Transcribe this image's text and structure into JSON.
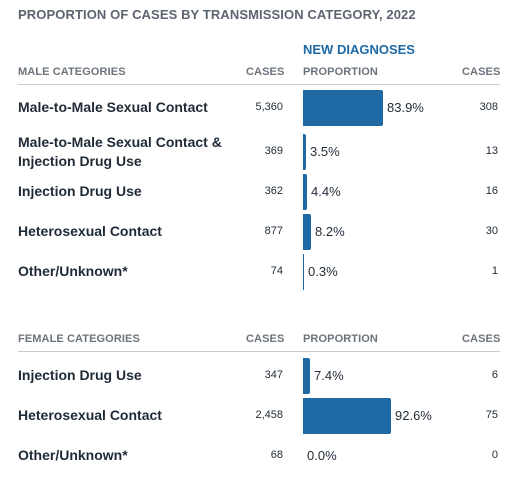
{
  "title": "PROPORTION OF CASES BY TRANSMISSION CATEGORY, 2022",
  "new_diagnoses_label": "NEW DIAGNOSES",
  "male": {
    "header": {
      "category": "MALE CATEGORIES",
      "cases": "CASES",
      "proportion": "PROPORTION",
      "cases2": "CASES"
    },
    "rows": [
      {
        "label": "Male-to-Male Sexual Contact",
        "cases": "5,360",
        "proportion": "83.9%",
        "new_cases": "308"
      },
      {
        "label": "Male-to-Male Sexual Contact & Injection Drug Use",
        "cases": "369",
        "proportion": "3.5%",
        "new_cases": "13"
      },
      {
        "label": "Injection Drug Use",
        "cases": "362",
        "proportion": "4.4%",
        "new_cases": "16"
      },
      {
        "label": "Heterosexual Contact",
        "cases": "877",
        "proportion": "8.2%",
        "new_cases": "30"
      },
      {
        "label": "Other/Unknown*",
        "cases": "74",
        "proportion": "0.3%",
        "new_cases": "1"
      }
    ]
  },
  "female": {
    "header": {
      "category": "FEMALE CATEGORIES",
      "cases": "CASES",
      "proportion": "PROPORTION",
      "cases2": "CASES"
    },
    "rows": [
      {
        "label": "Injection Drug Use",
        "cases": "347",
        "proportion": "7.4%",
        "new_cases": "6"
      },
      {
        "label": "Heterosexual Contact",
        "cases": "2,458",
        "proportion": "92.6%",
        "new_cases": "75"
      },
      {
        "label": "Other/Unknown*",
        "cases": "68",
        "proportion": "0.0%",
        "new_cases": "0"
      }
    ]
  },
  "colors": {
    "bar": "#1f6aa5",
    "title": "#5b6470",
    "header_accent": "#1f6aa5"
  },
  "chart_data": [
    {
      "type": "bar",
      "title": "PROPORTION OF CASES BY TRANSMISSION CATEGORY, 2022",
      "categories": [
        "Male-to-Male Sexual Contact",
        "Male-to-Male Sexual Contact & Injection Drug Use",
        "Injection Drug Use",
        "Heterosexual Contact",
        "Other/Unknown*"
      ],
      "series": [
        {
          "name": "PROPORTION",
          "values": [
            83.9,
            3.5,
            4.4,
            8.2,
            0.3
          ]
        }
      ],
      "cases": [
        5360,
        369,
        362,
        877,
        74
      ],
      "new_diagnoses_cases": [
        308,
        13,
        16,
        30,
        1
      ],
      "xlabel": "",
      "ylabel": "",
      "ylim": [
        0,
        100
      ]
    },
    {
      "type": "bar",
      "categories": [
        "Injection Drug Use",
        "Heterosexual Contact",
        "Other/Unknown*"
      ],
      "series": [
        {
          "name": "PROPORTION",
          "values": [
            7.4,
            92.6,
            0.0
          ]
        }
      ],
      "cases": [
        347,
        2458,
        68
      ],
      "new_diagnoses_cases": [
        6,
        75,
        0
      ],
      "xlabel": "",
      "ylabel": "",
      "ylim": [
        0,
        100
      ]
    }
  ]
}
